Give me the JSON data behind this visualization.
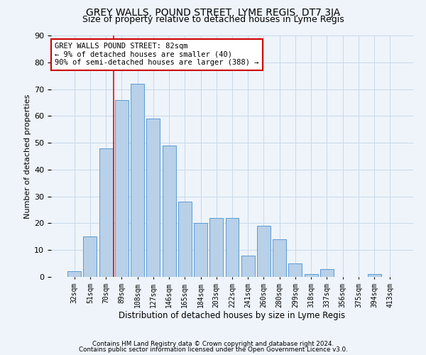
{
  "title": "GREY WALLS, POUND STREET, LYME REGIS, DT7 3JA",
  "subtitle": "Size of property relative to detached houses in Lyme Regis",
  "xlabel": "Distribution of detached houses by size in Lyme Regis",
  "ylabel": "Number of detached properties",
  "categories": [
    "32sqm",
    "51sqm",
    "70sqm",
    "89sqm",
    "108sqm",
    "127sqm",
    "146sqm",
    "165sqm",
    "184sqm",
    "203sqm",
    "222sqm",
    "241sqm",
    "260sqm",
    "280sqm",
    "299sqm",
    "318sqm",
    "337sqm",
    "356sqm",
    "375sqm",
    "394sqm",
    "413sqm"
  ],
  "values": [
    2,
    15,
    48,
    66,
    72,
    59,
    49,
    28,
    20,
    22,
    22,
    8,
    19,
    14,
    5,
    1,
    3,
    0,
    0,
    1,
    0
  ],
  "bar_color": "#b8d0e8",
  "bar_edge_color": "#5b9bd5",
  "grid_color": "#c8d8e8",
  "background_color": "#eef4fa",
  "annotation_text": "GREY WALLS POUND STREET: 82sqm\n← 9% of detached houses are smaller (40)\n90% of semi-detached houses are larger (388) →",
  "annotation_box_color": "#ffffff",
  "annotation_box_edge": "#cc0000",
  "redline_x": 2.5,
  "ylim": [
    0,
    90
  ],
  "yticks": [
    0,
    10,
    20,
    30,
    40,
    50,
    60,
    70,
    80,
    90
  ],
  "title_fontsize": 10,
  "subtitle_fontsize": 9,
  "ylabel_fontsize": 8,
  "xlabel_fontsize": 8.5,
  "tick_fontsize": 8,
  "footer1": "Contains HM Land Registry data © Crown copyright and database right 2024.",
  "footer2": "Contains public sector information licensed under the Open Government Licence v3.0."
}
